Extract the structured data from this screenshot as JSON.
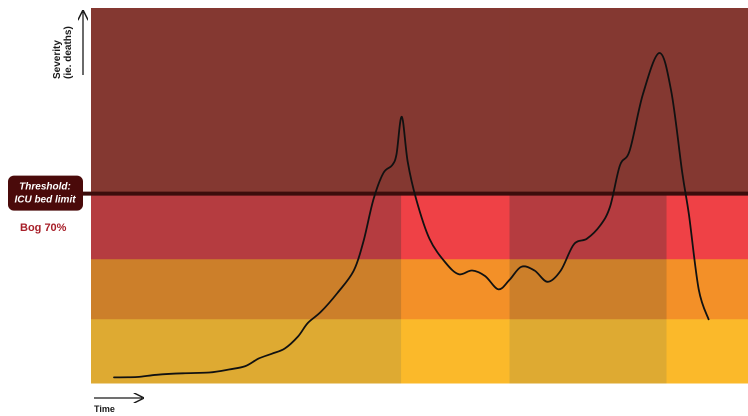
{
  "chart_data": {
    "type": "line",
    "title": "",
    "ylabel": "Severity (ie. deaths)",
    "ylabel_lines": [
      "Severity",
      "(ie. deaths)"
    ],
    "xlabel": "Time",
    "xlim": [
      0,
      100
    ],
    "ylim": [
      0,
      100
    ],
    "threshold": {
      "value": 50.5,
      "label_lines": [
        "Threshold:",
        "ICU bed limit"
      ],
      "sublabel": "Bog 70%"
    },
    "bands": [
      {
        "name": "top",
        "from": 50.5,
        "to": 100
      },
      {
        "name": "red",
        "from": 33,
        "to": 50.5
      },
      {
        "name": "orange",
        "from": 17,
        "to": 33
      },
      {
        "name": "yellow",
        "from": 0,
        "to": 17
      }
    ],
    "segments": [
      {
        "from": 0,
        "to": 47.2,
        "shade": "muted"
      },
      {
        "from": 47.2,
        "to": 63.7,
        "shade": "bright"
      },
      {
        "from": 63.7,
        "to": 87.6,
        "shade": "muted"
      },
      {
        "from": 87.6,
        "to": 100,
        "shade": "bright"
      }
    ],
    "series": [
      {
        "values": [
          [
            3.5,
            1.5
          ],
          [
            7,
            1.6
          ],
          [
            10,
            2.2
          ],
          [
            14,
            2.6
          ],
          [
            18,
            2.8
          ],
          [
            21,
            3.6
          ],
          [
            23.5,
            4.5
          ],
          [
            25.5,
            6.5
          ],
          [
            27.5,
            7.8
          ],
          [
            29.5,
            9.2
          ],
          [
            31.5,
            12.4
          ],
          [
            33,
            16
          ],
          [
            35,
            19
          ],
          [
            37.5,
            24
          ],
          [
            40,
            30
          ],
          [
            41.5,
            38
          ],
          [
            43,
            49
          ],
          [
            44.5,
            56
          ],
          [
            45.8,
            58
          ],
          [
            46.5,
            61
          ],
          [
            47.3,
            71
          ],
          [
            48.2,
            59
          ],
          [
            49.5,
            49
          ],
          [
            51.5,
            38.5
          ],
          [
            54,
            32
          ],
          [
            56,
            29
          ],
          [
            58,
            30
          ],
          [
            60,
            28.5
          ],
          [
            62,
            25
          ],
          [
            63.7,
            27.5
          ],
          [
            65.5,
            31
          ],
          [
            67.5,
            30
          ],
          [
            69.5,
            27
          ],
          [
            71.5,
            30
          ],
          [
            73.5,
            37
          ],
          [
            75.5,
            38.5
          ],
          [
            77.5,
            42
          ],
          [
            79,
            47
          ],
          [
            80.5,
            58
          ],
          [
            82,
            62
          ],
          [
            84,
            77
          ],
          [
            86.5,
            88
          ],
          [
            88.3,
            78
          ],
          [
            90,
            56
          ],
          [
            91,
            45
          ],
          [
            92.5,
            25
          ],
          [
            94,
            17
          ]
        ]
      }
    ]
  },
  "colors": {
    "top_band": "#843831",
    "red_muted": "#b53c40",
    "red_bright": "#ef4146",
    "orange_muted": "#cc7f2a",
    "orange_bright": "#f39028",
    "yellow_muted": "#deaa32",
    "yellow_bright": "#fbb92a",
    "threshold_line": "#3b0d0c",
    "threshold_badge": "#4a0a0a",
    "threshold_sub": "#a8202a",
    "curve": "#111111"
  }
}
